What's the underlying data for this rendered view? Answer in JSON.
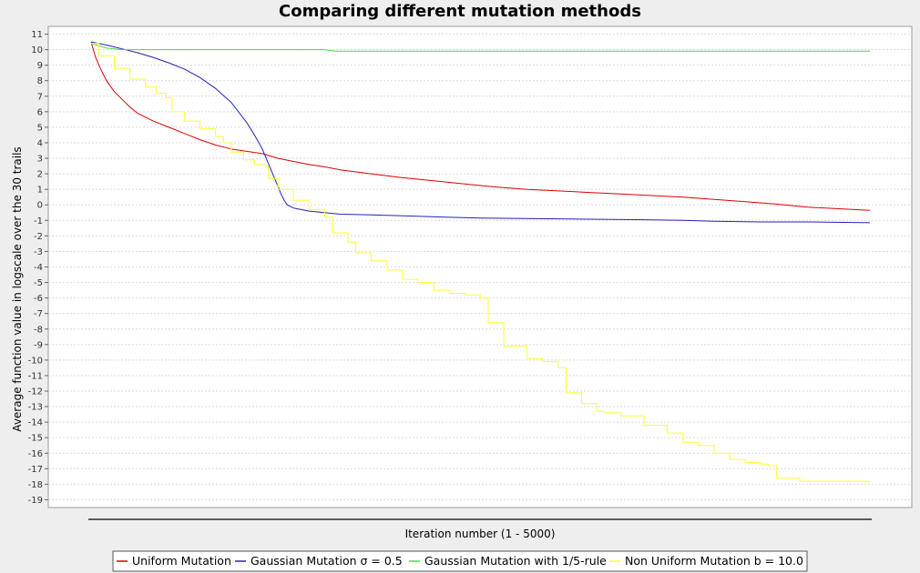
{
  "chart_data": {
    "type": "line",
    "title": "Comparing different mutation methods",
    "xlabel": "Iteration number (1 - 5000)",
    "ylabel": "Average function value in logscale over the 30 trails",
    "xlim": [
      1,
      5000
    ],
    "ylim": [
      -19.5,
      11.5
    ],
    "y_ticks": [
      11,
      10,
      9,
      8,
      7,
      6,
      5,
      4,
      3,
      2,
      1,
      0,
      -1,
      -2,
      -3,
      -4,
      -5,
      -6,
      -7,
      -8,
      -9,
      -10,
      -11,
      -12,
      -13,
      -14,
      -15,
      -16,
      -17,
      -18,
      -19
    ],
    "x_tick_labels_shown": false,
    "grid": true,
    "legend_position": "bottom",
    "series": [
      {
        "name": "Uniform Mutation",
        "color": "#dd0000",
        "step": false,
        "x": [
          1,
          30,
          60,
          100,
          150,
          200,
          250,
          300,
          400,
          500,
          600,
          700,
          800,
          900,
          1000,
          1100,
          1200,
          1300,
          1400,
          1500,
          1600,
          1800,
          2000,
          2200,
          2400,
          2600,
          2800,
          3000,
          3200,
          3400,
          3600,
          3800,
          4000,
          4200,
          4400,
          4600,
          4800,
          5000
        ],
        "y": [
          10.5,
          9.5,
          8.8,
          8.0,
          7.3,
          6.8,
          6.3,
          5.9,
          5.4,
          5.0,
          4.6,
          4.2,
          3.85,
          3.6,
          3.45,
          3.3,
          3.0,
          2.8,
          2.6,
          2.45,
          2.25,
          2.0,
          1.75,
          1.55,
          1.35,
          1.15,
          1.0,
          0.9,
          0.8,
          0.7,
          0.6,
          0.5,
          0.35,
          0.2,
          0.05,
          -0.15,
          -0.25,
          -0.35
        ]
      },
      {
        "name": "Gaussian Mutation σ = 0.5",
        "color": "#2222bb",
        "step": false,
        "x": [
          1,
          100,
          200,
          300,
          400,
          500,
          600,
          700,
          800,
          900,
          1000,
          1050,
          1100,
          1150,
          1200,
          1220,
          1240,
          1260,
          1280,
          1300,
          1320,
          1350,
          1400,
          1500,
          1600,
          1800,
          2000,
          2300,
          2500,
          3000,
          3500,
          3800,
          4000,
          4300,
          4600,
          5000
        ],
        "y": [
          10.5,
          10.3,
          10.05,
          9.8,
          9.5,
          9.15,
          8.75,
          8.2,
          7.5,
          6.6,
          5.3,
          4.5,
          3.6,
          2.4,
          1.2,
          0.7,
          0.3,
          0.0,
          -0.1,
          -0.2,
          -0.25,
          -0.3,
          -0.4,
          -0.5,
          -0.6,
          -0.65,
          -0.7,
          -0.8,
          -0.85,
          -0.9,
          -0.95,
          -1.0,
          -1.05,
          -1.1,
          -1.1,
          -1.15
        ]
      },
      {
        "name": "Gaussian Mutation with 1/5-rule",
        "color": "#44dd44",
        "step": false,
        "x": [
          1,
          100,
          200,
          500,
          1000,
          1500,
          1570,
          2000,
          3000,
          4000,
          5000
        ],
        "y": [
          10.4,
          10.1,
          10.0,
          10.0,
          10.0,
          10.0,
          9.9,
          9.9,
          9.9,
          9.9,
          9.9
        ]
      },
      {
        "name": "Non Uniform Mutation b = 10.0",
        "color": "#ffff33",
        "step": true,
        "x": [
          1,
          50,
          150,
          250,
          350,
          420,
          480,
          520,
          600,
          700,
          800,
          850,
          900,
          980,
          1050,
          1120,
          1140,
          1200,
          1300,
          1400,
          1500,
          1550,
          1650,
          1700,
          1800,
          1900,
          2000,
          2100,
          2200,
          2300,
          2400,
          2500,
          2550,
          2650,
          2800,
          2900,
          3000,
          3050,
          3150,
          3250,
          3300,
          3400,
          3550,
          3700,
          3800,
          3900,
          4000,
          4100,
          4200,
          4300,
          4350,
          4400,
          4550,
          4650,
          4700,
          4800,
          5000
        ],
        "y": [
          10.4,
          9.6,
          8.8,
          8.1,
          7.6,
          7.2,
          6.9,
          6.0,
          5.4,
          4.9,
          4.4,
          4.0,
          3.4,
          2.9,
          2.6,
          2.5,
          1.7,
          1.0,
          0.3,
          -0.3,
          -0.8,
          -1.8,
          -2.4,
          -3.1,
          -3.6,
          -4.2,
          -4.8,
          -5.0,
          -5.5,
          -5.7,
          -5.8,
          -6.0,
          -7.6,
          -9.1,
          -9.9,
          -10.1,
          -10.5,
          -12.1,
          -12.8,
          -13.3,
          -13.4,
          -13.6,
          -14.2,
          -14.7,
          -15.3,
          -15.5,
          -16.0,
          -16.4,
          -16.6,
          -16.7,
          -16.8,
          -17.6,
          -17.8,
          -17.8,
          -17.8,
          -17.8,
          -17.8
        ]
      }
    ]
  }
}
